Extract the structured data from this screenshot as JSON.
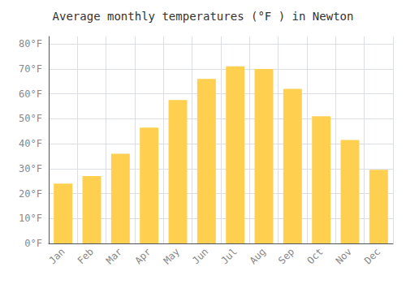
{
  "chart_data": {
    "type": "bar",
    "title": "Average monthly temperatures (°F ) in Newton",
    "categories": [
      "Jan",
      "Feb",
      "Mar",
      "Apr",
      "May",
      "Jun",
      "Jul",
      "Aug",
      "Sep",
      "Oct",
      "Nov",
      "Dec"
    ],
    "values": [
      24,
      27,
      36,
      46.5,
      57.5,
      66,
      71,
      70,
      62,
      51,
      41.5,
      29.5
    ],
    "color": "#FFD050",
    "ylim": [
      0,
      83
    ],
    "yticks": [
      {
        "value": 0,
        "label": "0°F"
      },
      {
        "value": 10,
        "label": "10°F"
      },
      {
        "value": 20,
        "label": "20°F"
      },
      {
        "value": 30,
        "label": "30°F"
      },
      {
        "value": 40,
        "label": "40°F"
      },
      {
        "value": 50,
        "label": "50°F"
      },
      {
        "value": 60,
        "label": "60°F"
      },
      {
        "value": 70,
        "label": "70°F"
      },
      {
        "value": 80,
        "label": "80°F"
      }
    ],
    "grid": true
  }
}
